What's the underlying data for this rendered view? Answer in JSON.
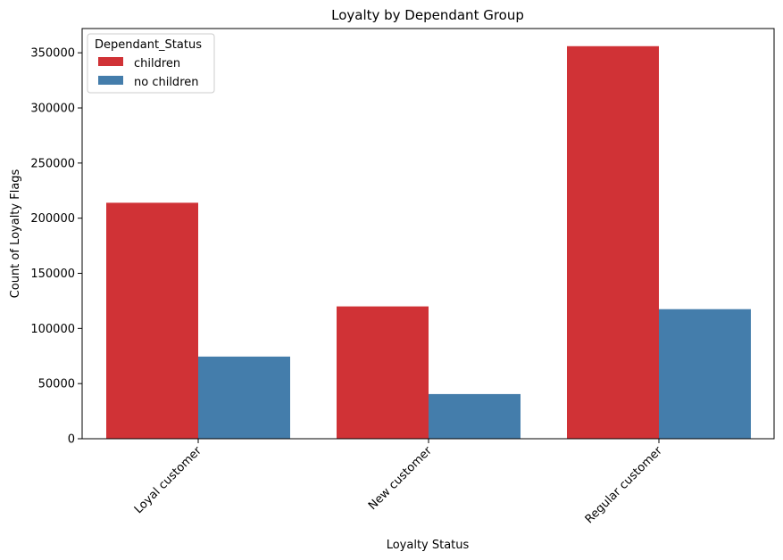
{
  "chart_data": {
    "type": "bar",
    "title": "Loyalty by Dependant Group",
    "xlabel": "Loyalty Status",
    "ylabel": "Count of Loyalty Flags",
    "categories": [
      "Loyal customer",
      "New customer",
      "Regular customer"
    ],
    "series": [
      {
        "name": "children",
        "values": [
          214000,
          120000,
          356000
        ],
        "color": "#d03236"
      },
      {
        "name": "no children",
        "values": [
          74500,
          40500,
          117500
        ],
        "color": "#447dab"
      }
    ],
    "ylim": [
      0,
      372000
    ],
    "yticks": [
      0,
      50000,
      100000,
      150000,
      200000,
      250000,
      300000,
      350000
    ],
    "ytick_labels": [
      "0",
      "50000",
      "100000",
      "150000",
      "200000",
      "250000",
      "300000",
      "350000"
    ],
    "legend": {
      "title": "Dependant_Status",
      "position": "top-left"
    },
    "grid": false
  }
}
